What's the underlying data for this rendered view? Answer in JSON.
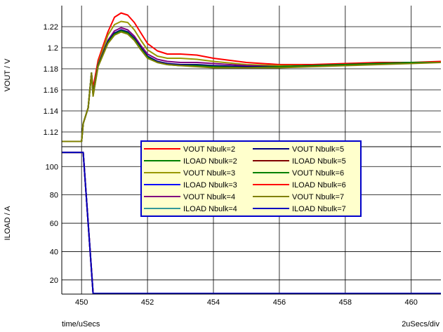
{
  "chart_data": {
    "type": "line",
    "x_unit_label": "time/uSecs",
    "x_scale_label": "2uSecs/div",
    "xlim": [
      449.4,
      460.9
    ],
    "x_ticks": [
      450,
      452,
      454,
      456,
      458,
      460
    ],
    "x_tick_labels": [
      "450",
      "452",
      "454",
      "456",
      "458",
      "460"
    ],
    "panels": [
      {
        "id": "vout",
        "ylabel": "VOUT / V",
        "ylim": [
          1.106,
          1.24
        ],
        "y_ticks": [
          1.12,
          1.14,
          1.16,
          1.18,
          1.2,
          1.22
        ],
        "y_tick_labels": [
          "1.12",
          "1.14",
          "1.16",
          "1.18",
          "1.2",
          "1.22"
        ],
        "series": [
          {
            "name": "VOUT Nbulk=2",
            "color": "#ff0000",
            "x": [
              449.4,
              450.0,
              450.05,
              450.2,
              450.3,
              450.35,
              450.5,
              450.8,
              451.0,
              451.2,
              451.4,
              451.6,
              451.8,
              452.0,
              452.3,
              452.6,
              453.0,
              453.5,
              454.0,
              455.0,
              456.0,
              457.0,
              458.0,
              459.0,
              460.0,
              460.9
            ],
            "y": [
              1.111,
              1.111,
              1.128,
              1.143,
              1.176,
              1.162,
              1.188,
              1.215,
              1.229,
              1.233,
              1.231,
              1.224,
              1.214,
              1.204,
              1.197,
              1.194,
              1.194,
              1.193,
              1.19,
              1.186,
              1.184,
              1.184,
              1.185,
              1.186,
              1.186,
              1.187
            ]
          },
          {
            "name": "VOUT Nbulk=3",
            "color": "#999900",
            "x": [
              449.4,
              450.0,
              450.05,
              450.2,
              450.3,
              450.35,
              450.5,
              450.8,
              451.0,
              451.2,
              451.4,
              451.6,
              451.8,
              452.0,
              452.3,
              452.6,
              453.0,
              453.5,
              454.0,
              455.0,
              456.0,
              457.0,
              458.0,
              459.0,
              460.0,
              460.9
            ],
            "y": [
              1.111,
              1.111,
              1.128,
              1.143,
              1.176,
              1.157,
              1.185,
              1.212,
              1.222,
              1.225,
              1.224,
              1.217,
              1.207,
              1.198,
              1.192,
              1.19,
              1.19,
              1.189,
              1.187,
              1.184,
              1.183,
              1.183,
              1.184,
              1.185,
              1.186,
              1.186
            ]
          },
          {
            "name": "VOUT Nbulk=4",
            "color": "#800080",
            "x": [
              449.4,
              450.0,
              450.05,
              450.2,
              450.3,
              450.35,
              450.5,
              450.8,
              451.0,
              451.2,
              451.4,
              451.6,
              451.8,
              452.0,
              452.3,
              452.6,
              453.0,
              453.5,
              454.0,
              455.0,
              456.0,
              457.0,
              458.0,
              459.0,
              460.0,
              460.9
            ],
            "y": [
              1.111,
              1.111,
              1.128,
              1.143,
              1.176,
              1.156,
              1.184,
              1.207,
              1.216,
              1.219,
              1.217,
              1.211,
              1.202,
              1.194,
              1.189,
              1.187,
              1.186,
              1.186,
              1.185,
              1.183,
              1.182,
              1.183,
              1.184,
              1.185,
              1.186,
              1.186
            ]
          },
          {
            "name": "VOUT Nbulk=5",
            "color": "#000080",
            "x": [
              449.4,
              450.0,
              450.05,
              450.2,
              450.3,
              450.35,
              450.5,
              450.8,
              451.0,
              451.2,
              451.4,
              451.6,
              451.8,
              452.0,
              452.3,
              452.6,
              453.0,
              453.5,
              454.0,
              455.0,
              456.0,
              457.0,
              458.0,
              459.0,
              460.0,
              460.9
            ],
            "y": [
              1.111,
              1.111,
              1.128,
              1.143,
              1.176,
              1.155,
              1.183,
              1.206,
              1.214,
              1.217,
              1.215,
              1.209,
              1.2,
              1.192,
              1.187,
              1.185,
              1.184,
              1.184,
              1.183,
              1.182,
              1.182,
              1.183,
              1.184,
              1.185,
              1.186,
              1.186
            ]
          },
          {
            "name": "VOUT Nbulk=6",
            "color": "#008000",
            "x": [
              449.4,
              450.0,
              450.05,
              450.2,
              450.3,
              450.35,
              450.5,
              450.8,
              451.0,
              451.2,
              451.4,
              451.6,
              451.8,
              452.0,
              452.3,
              452.6,
              453.0,
              453.5,
              454.0,
              455.0,
              456.0,
              457.0,
              458.0,
              459.0,
              460.0,
              460.9
            ],
            "y": [
              1.111,
              1.111,
              1.128,
              1.143,
              1.176,
              1.155,
              1.183,
              1.205,
              1.213,
              1.216,
              1.214,
              1.208,
              1.199,
              1.191,
              1.186,
              1.184,
              1.183,
              1.183,
              1.182,
              1.181,
              1.182,
              1.183,
              1.184,
              1.185,
              1.186,
              1.186
            ]
          },
          {
            "name": "VOUT Nbulk=7",
            "color": "#808000",
            "x": [
              449.4,
              450.0,
              450.05,
              450.2,
              450.3,
              450.35,
              450.5,
              450.8,
              451.0,
              451.2,
              451.4,
              451.6,
              451.8,
              452.0,
              452.3,
              452.6,
              453.0,
              453.5,
              454.0,
              455.0,
              456.0,
              457.0,
              458.0,
              459.0,
              460.0,
              460.9
            ],
            "y": [
              1.111,
              1.111,
              1.128,
              1.143,
              1.176,
              1.154,
              1.182,
              1.204,
              1.212,
              1.215,
              1.213,
              1.207,
              1.198,
              1.19,
              1.186,
              1.184,
              1.183,
              1.182,
              1.181,
              1.181,
              1.181,
              1.182,
              1.183,
              1.184,
              1.185,
              1.186
            ]
          }
        ]
      },
      {
        "id": "iload",
        "ylabel": "ILOAD / A",
        "ylim": [
          10,
          114
        ],
        "y_ticks": [
          20,
          40,
          60,
          80,
          100
        ],
        "y_tick_labels": [
          "20",
          "40",
          "60",
          "80",
          "100"
        ],
        "series": [
          {
            "name": "ILOAD Nbulk=2",
            "color": "#008000",
            "x": [
              449.4,
              450.05,
              450.35,
              460.9
            ],
            "y": [
              110,
              110,
              10.5,
              10.5
            ]
          },
          {
            "name": "ILOAD Nbulk=3",
            "color": "#0000ff",
            "x": [
              449.4,
              450.05,
              450.35,
              460.9
            ],
            "y": [
              110,
              110,
              10.5,
              10.5
            ]
          },
          {
            "name": "ILOAD Nbulk=4",
            "color": "#339999",
            "x": [
              449.4,
              450.05,
              450.35,
              460.9
            ],
            "y": [
              110,
              110,
              10.5,
              10.5
            ]
          },
          {
            "name": "ILOAD Nbulk=5",
            "color": "#800000",
            "x": [
              449.4,
              450.05,
              450.35,
              460.9
            ],
            "y": [
              110,
              110,
              10.5,
              10.5
            ]
          },
          {
            "name": "ILOAD Nbulk=6",
            "color": "#ff0000",
            "x": [
              449.4,
              450.05,
              450.35,
              460.9
            ],
            "y": [
              110,
              110,
              10.5,
              10.5
            ]
          },
          {
            "name": "ILOAD Nbulk=7",
            "color": "#0000c0",
            "x": [
              449.4,
              450.05,
              450.35,
              460.9
            ],
            "y": [
              110,
              110,
              10.5,
              10.5
            ]
          }
        ]
      }
    ],
    "legend": {
      "placement": "center",
      "background": "#ffffcc",
      "border": "#0000cc",
      "entries": [
        {
          "label": "VOUT Nbulk=2",
          "color": "#ff0000"
        },
        {
          "label": "VOUT Nbulk=5",
          "color": "#000080"
        },
        {
          "label": "ILOAD Nbulk=2",
          "color": "#008000"
        },
        {
          "label": "ILOAD Nbulk=5",
          "color": "#800000"
        },
        {
          "label": "VOUT Nbulk=3",
          "color": "#999900"
        },
        {
          "label": "VOUT Nbulk=6",
          "color": "#008000"
        },
        {
          "label": "ILOAD Nbulk=3",
          "color": "#0000ff"
        },
        {
          "label": "ILOAD Nbulk=6",
          "color": "#ff0000"
        },
        {
          "label": "VOUT Nbulk=4",
          "color": "#800080"
        },
        {
          "label": "VOUT Nbulk=7",
          "color": "#808000"
        },
        {
          "label": "ILOAD Nbulk=4",
          "color": "#339999"
        },
        {
          "label": "ILOAD Nbulk=7",
          "color": "#0000c0"
        }
      ]
    },
    "grid": true
  }
}
